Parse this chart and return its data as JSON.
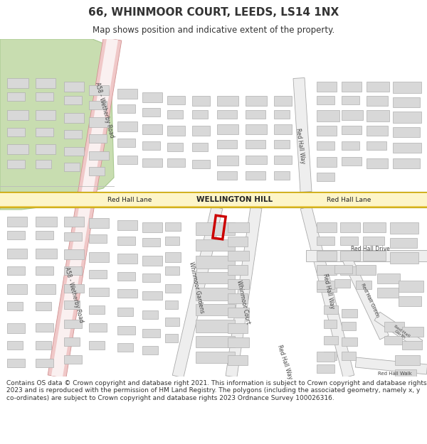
{
  "title": "66, WHINMOOR COURT, LEEDS, LS14 1NX",
  "subtitle": "Map shows position and indicative extent of the property.",
  "footer": "Contains OS data © Crown copyright and database right 2021. This information is subject to Crown copyright and database rights 2023 and is reproduced with the permission of HM Land Registry. The polygons (including the associated geometry, namely x, y co-ordinates) are subject to Crown copyright and database rights 2023 Ordnance Survey 100026316.",
  "road_yellow": "#e8c84a",
  "road_yellow_light": "#fdf5c8",
  "road_pink": "#f0c8c8",
  "road_pink_light": "#faf0f0",
  "building_fill": "#d8d8d8",
  "building_edge": "#b0b0b0",
  "green_fill": "#c8ddb0",
  "green_edge": "#a8c890",
  "highlight_red": "#cc0000",
  "text_dark": "#333333",
  "text_road": "#444444",
  "white": "#ffffff",
  "title_fontsize": 11,
  "subtitle_fontsize": 8.5,
  "footer_fontsize": 6.5
}
